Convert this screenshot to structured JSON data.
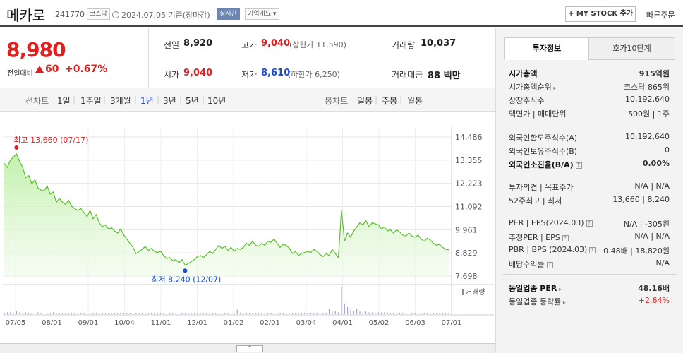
{
  "header": {
    "name": "메카로",
    "code": "241770",
    "market": "코스닥",
    "datetime": "2024.07.05  기준(장마감)",
    "realtime": "실시간",
    "company_info": "기업개요 ▾",
    "mystock": "+ MY STOCK 추가",
    "quick_order": "빠른주문"
  },
  "price": {
    "current": "8,980",
    "vs_prev_label": "전일대비",
    "change": "60",
    "change_pct": "+0.67%"
  },
  "stats": {
    "prev_close_label": "전일",
    "prev_close": "8,920",
    "high_label": "고가",
    "high": "9,040",
    "upper_limit": "(상한가 11,590)",
    "volume_label": "거래량",
    "volume": "10,037",
    "open_label": "시가",
    "open": "9,040",
    "low_label": "저가",
    "low": "8,610",
    "lower_limit": "(하한가 6,250)",
    "amount_label": "거래대금",
    "amount": "88 백만"
  },
  "periods": {
    "line_label": "선차트",
    "line": [
      "1일",
      "1주일",
      "3개월",
      "1년",
      "3년",
      "5년",
      "10년"
    ],
    "selected": "1년",
    "candle_label": "봉차트",
    "candle": [
      "일봉",
      "주봉",
      "월봉"
    ]
  },
  "chart_data": {
    "type": "area",
    "y_ticks": [
      "14,486",
      "13,355",
      "12,223",
      "11,092",
      "9,961",
      "8,829",
      "7,698"
    ],
    "ylim": [
      7698,
      14486
    ],
    "x_ticks": [
      "07/05",
      "08/01",
      "09/01",
      "10/04",
      "11/01",
      "12/01",
      "01/02",
      "02/01",
      "03/04",
      "04/01",
      "05/02",
      "06/03",
      "07/01"
    ],
    "max_label": "최고 13,660 (07/17)",
    "min_label": "최저 8,240 (12/07)",
    "volume_label": "거래량",
    "series": [
      {
        "values": [
          13200,
          13000,
          13350,
          13500,
          13660,
          13300,
          13000,
          12500,
          12600,
          12200,
          12400,
          12000,
          11900,
          11850,
          12100,
          11700,
          11800,
          11300,
          11500,
          11300,
          11200,
          11400,
          11100,
          11000,
          10900,
          11000,
          10800,
          10600,
          10900,
          10500,
          10700,
          10300,
          10100,
          10200,
          10000,
          10050,
          9900,
          9800,
          10000,
          9700,
          9500,
          9300,
          9100,
          8800,
          8900,
          9000,
          9150,
          8950,
          9050,
          8900,
          8850,
          8900,
          8700,
          8550,
          8600,
          8450,
          8500,
          8350,
          8500,
          8240,
          8300,
          8400,
          8500,
          8650,
          8700,
          8600,
          8750,
          8900,
          8800,
          9000,
          9200,
          9050,
          9150,
          8950,
          9100,
          8900,
          9050,
          9000,
          9100,
          9300,
          9200,
          9400,
          9200,
          9150,
          9300,
          9200,
          9400,
          9350,
          9500,
          9300,
          9100,
          9250,
          9200,
          9050,
          8800,
          8900,
          8700,
          8800,
          8850,
          8900,
          8850,
          9000,
          8900,
          8750,
          8650,
          8800,
          8700,
          9000,
          8800,
          8600,
          10900,
          9400,
          9800,
          9600,
          9900,
          10100,
          10300,
          10200,
          10400,
          10100,
          10300,
          10250,
          10200,
          10000,
          10100,
          9900,
          9950,
          9800,
          9950,
          9850,
          9700,
          9650,
          9800,
          9650,
          9600,
          9700,
          9500,
          9400,
          9550,
          9450,
          9300,
          9200,
          9250,
          9100,
          9000,
          8980
        ]
      }
    ],
    "volume": [
      2,
      2,
      2,
      1,
      3,
      2,
      1,
      2,
      1,
      1,
      1,
      2,
      1,
      1,
      1,
      1,
      2,
      1,
      1,
      1,
      1,
      1,
      1,
      1,
      1,
      1,
      1,
      1,
      1,
      1,
      1,
      1,
      1,
      1,
      1,
      1,
      1,
      1,
      1,
      1,
      1,
      1,
      1,
      1,
      1,
      1,
      1,
      1,
      1,
      2,
      1,
      1,
      1,
      1,
      1,
      1,
      1,
      1,
      1,
      1,
      1,
      1,
      1,
      1,
      1,
      1,
      1,
      1,
      1,
      1,
      1,
      1,
      1,
      1,
      1,
      1,
      5,
      1,
      1,
      1,
      1,
      1,
      1,
      1,
      1,
      1,
      1,
      1,
      1,
      1,
      1,
      1,
      1,
      1,
      1,
      1,
      1,
      1,
      1,
      1,
      1,
      1,
      1,
      1,
      1,
      1,
      6,
      3,
      4,
      2,
      30,
      12,
      8,
      5,
      4,
      6,
      3,
      2,
      3,
      2,
      2,
      2,
      2,
      2,
      2,
      2,
      1,
      1,
      1,
      1,
      1,
      1,
      1,
      1,
      1,
      1,
      1,
      1,
      1,
      1,
      1,
      1,
      1,
      1,
      1,
      1,
      1
    ]
  },
  "panel": {
    "tab_active": "투자정보",
    "tab_inactive": "호가10단계",
    "rows1": [
      {
        "k": "시가총액",
        "v": "915억원",
        "bold": true
      },
      {
        "k": "시가총액순위",
        "v": "코스닥 865위",
        "arrow": true
      },
      {
        "k": "상장주식수",
        "v": "10,192,640"
      },
      {
        "k": "액면가 | 매매단위",
        "v": "500원 | 1주"
      }
    ],
    "rows2": [
      {
        "k": "외국인한도주식수(A)",
        "v": "10,192,640"
      },
      {
        "k": "외국인보유주식수(B)",
        "v": "0"
      },
      {
        "k": "외국인소진율(B/A)",
        "v": "0.00%",
        "bold": true,
        "q": true
      }
    ],
    "rows3": [
      {
        "k": "투자의견 | 목표주가",
        "v": "N/A | N/A"
      },
      {
        "k": "52주최고 | 최저",
        "v": "13,660 | 8,240"
      }
    ],
    "rows4": [
      {
        "k": "PER | EPS(2024.03)",
        "v": "N/A | -305원",
        "q": true
      },
      {
        "k": "추정PER | EPS",
        "v": "N/A | N/A",
        "q": true
      },
      {
        "k": "PBR | BPS (2024.03)",
        "v": "0.48배 | 18,820원",
        "q": true
      },
      {
        "k": "배당수익률",
        "v": "N/A",
        "q": true
      }
    ],
    "rows5": [
      {
        "k": "동일업종 PER",
        "v": "48.16배",
        "bold": true,
        "arrow": true
      },
      {
        "k": "동일업종 등락률",
        "v": "+2.64%",
        "red": true,
        "arrow": true
      }
    ]
  }
}
